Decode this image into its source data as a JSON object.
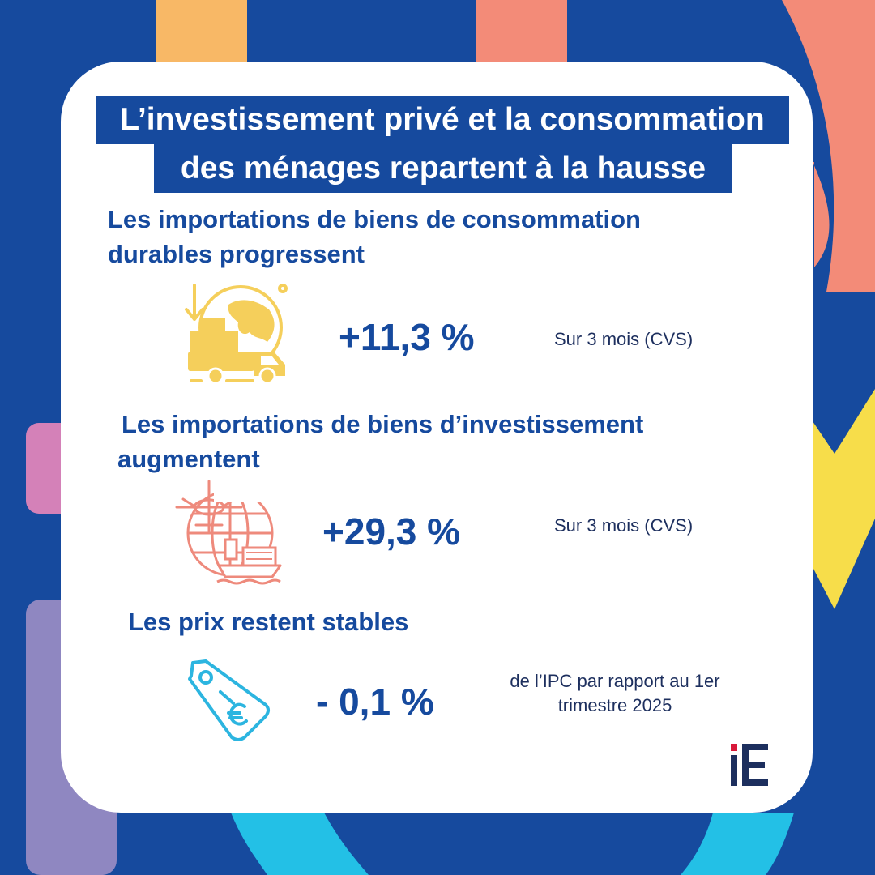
{
  "title": {
    "line1": "L’investissement privé et la consommation",
    "line2": "des ménages  repartent à la hausse"
  },
  "sections": [
    {
      "heading_line1": "Les importations de biens de consommation",
      "heading_line2": "durables progressent",
      "value": "+11,3 %",
      "note": "Sur 3 mois (CVS)",
      "icon": "delivery-truck-globe-icon"
    },
    {
      "heading_line1": "Les importations de biens d’investissement",
      "heading_line2": "augmentent",
      "value": "+29,3 %",
      "note": "Sur 3 mois (CVS)",
      "icon": "airplane-ship-globe-icon"
    },
    {
      "heading_line1": "Les prix restent stables",
      "value": "- 0,1 %",
      "note_line1": "de l’IPC par rapport au 1er",
      "note_line2": "trimestre 2025",
      "icon": "euro-price-tag-icon"
    }
  ],
  "logo": "iE",
  "colors": {
    "background": "#164a9e",
    "card": "#ffffff",
    "primary_text": "#164a9e",
    "yellow_icon": "#f5cf5b",
    "salmon_icon": "#ee8a7c",
    "cyan_icon": "#2cb5e0",
    "logo_red": "#d8193a"
  }
}
